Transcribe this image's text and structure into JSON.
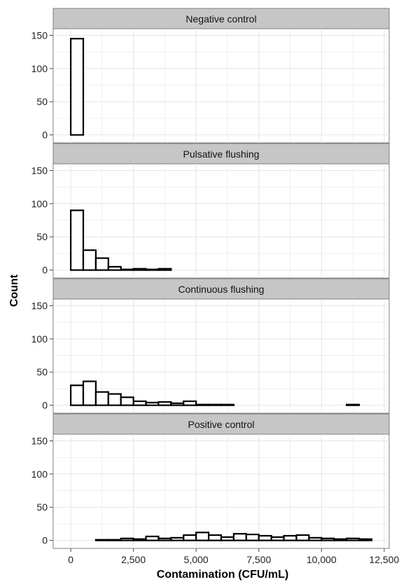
{
  "chart_data": {
    "type": "bar",
    "subtype": "faceted-histogram",
    "xlabel": "Contamination (CFU/mL)",
    "ylabel": "Count",
    "xlim": [
      -700,
      12700
    ],
    "ylim": [
      -12,
      160
    ],
    "x_ticks": [
      0,
      2500,
      5000,
      7500,
      10000,
      12500
    ],
    "x_tick_labels": [
      "0",
      "2,500",
      "5,000",
      "7,500",
      "10,000",
      "12,500"
    ],
    "y_ticks": [
      0,
      50,
      100,
      150
    ],
    "y_tick_labels": [
      "0",
      "50",
      "100",
      "150"
    ],
    "bin_width": 500,
    "bin_starts": [
      0,
      500,
      1000,
      1500,
      2000,
      2500,
      3000,
      3500,
      4000,
      4500,
      5000,
      5500,
      6000,
      6500,
      7000,
      7500,
      8000,
      8500,
      9000,
      9500,
      10000,
      10500,
      11000,
      11500
    ],
    "grid": true,
    "colors": {
      "panel_bg": "#ffffff",
      "grid": "#e6e6e6",
      "strip_bg": "#c6c6c6",
      "strip_border": "#7f7f7f",
      "bar_fill": "#ffffff",
      "bar_stroke": "#000000"
    },
    "panels": [
      {
        "label": "Negative control",
        "counts": [
          145,
          0,
          0,
          0,
          0,
          0,
          0,
          0,
          0,
          0,
          0,
          0,
          0,
          0,
          0,
          0,
          0,
          0,
          0,
          0,
          0,
          0,
          0,
          0
        ]
      },
      {
        "label": "Pulsative flushing",
        "counts": [
          90,
          30,
          18,
          5,
          1,
          2,
          1,
          2,
          0,
          0,
          0,
          0,
          0,
          0,
          0,
          0,
          0,
          0,
          0,
          0,
          0,
          0,
          0,
          0
        ]
      },
      {
        "label": "Continuous flushing",
        "counts": [
          30,
          36,
          20,
          17,
          12,
          6,
          4,
          5,
          3,
          6,
          1,
          1,
          1,
          0,
          0,
          0,
          0,
          0,
          0,
          0,
          0,
          0,
          1,
          0
        ]
      },
      {
        "label": "Positive control",
        "counts": [
          0,
          0,
          1,
          1,
          3,
          2,
          6,
          3,
          4,
          8,
          12,
          8,
          5,
          10,
          9,
          7,
          5,
          7,
          8,
          4,
          3,
          2,
          3,
          2
        ]
      }
    ]
  }
}
